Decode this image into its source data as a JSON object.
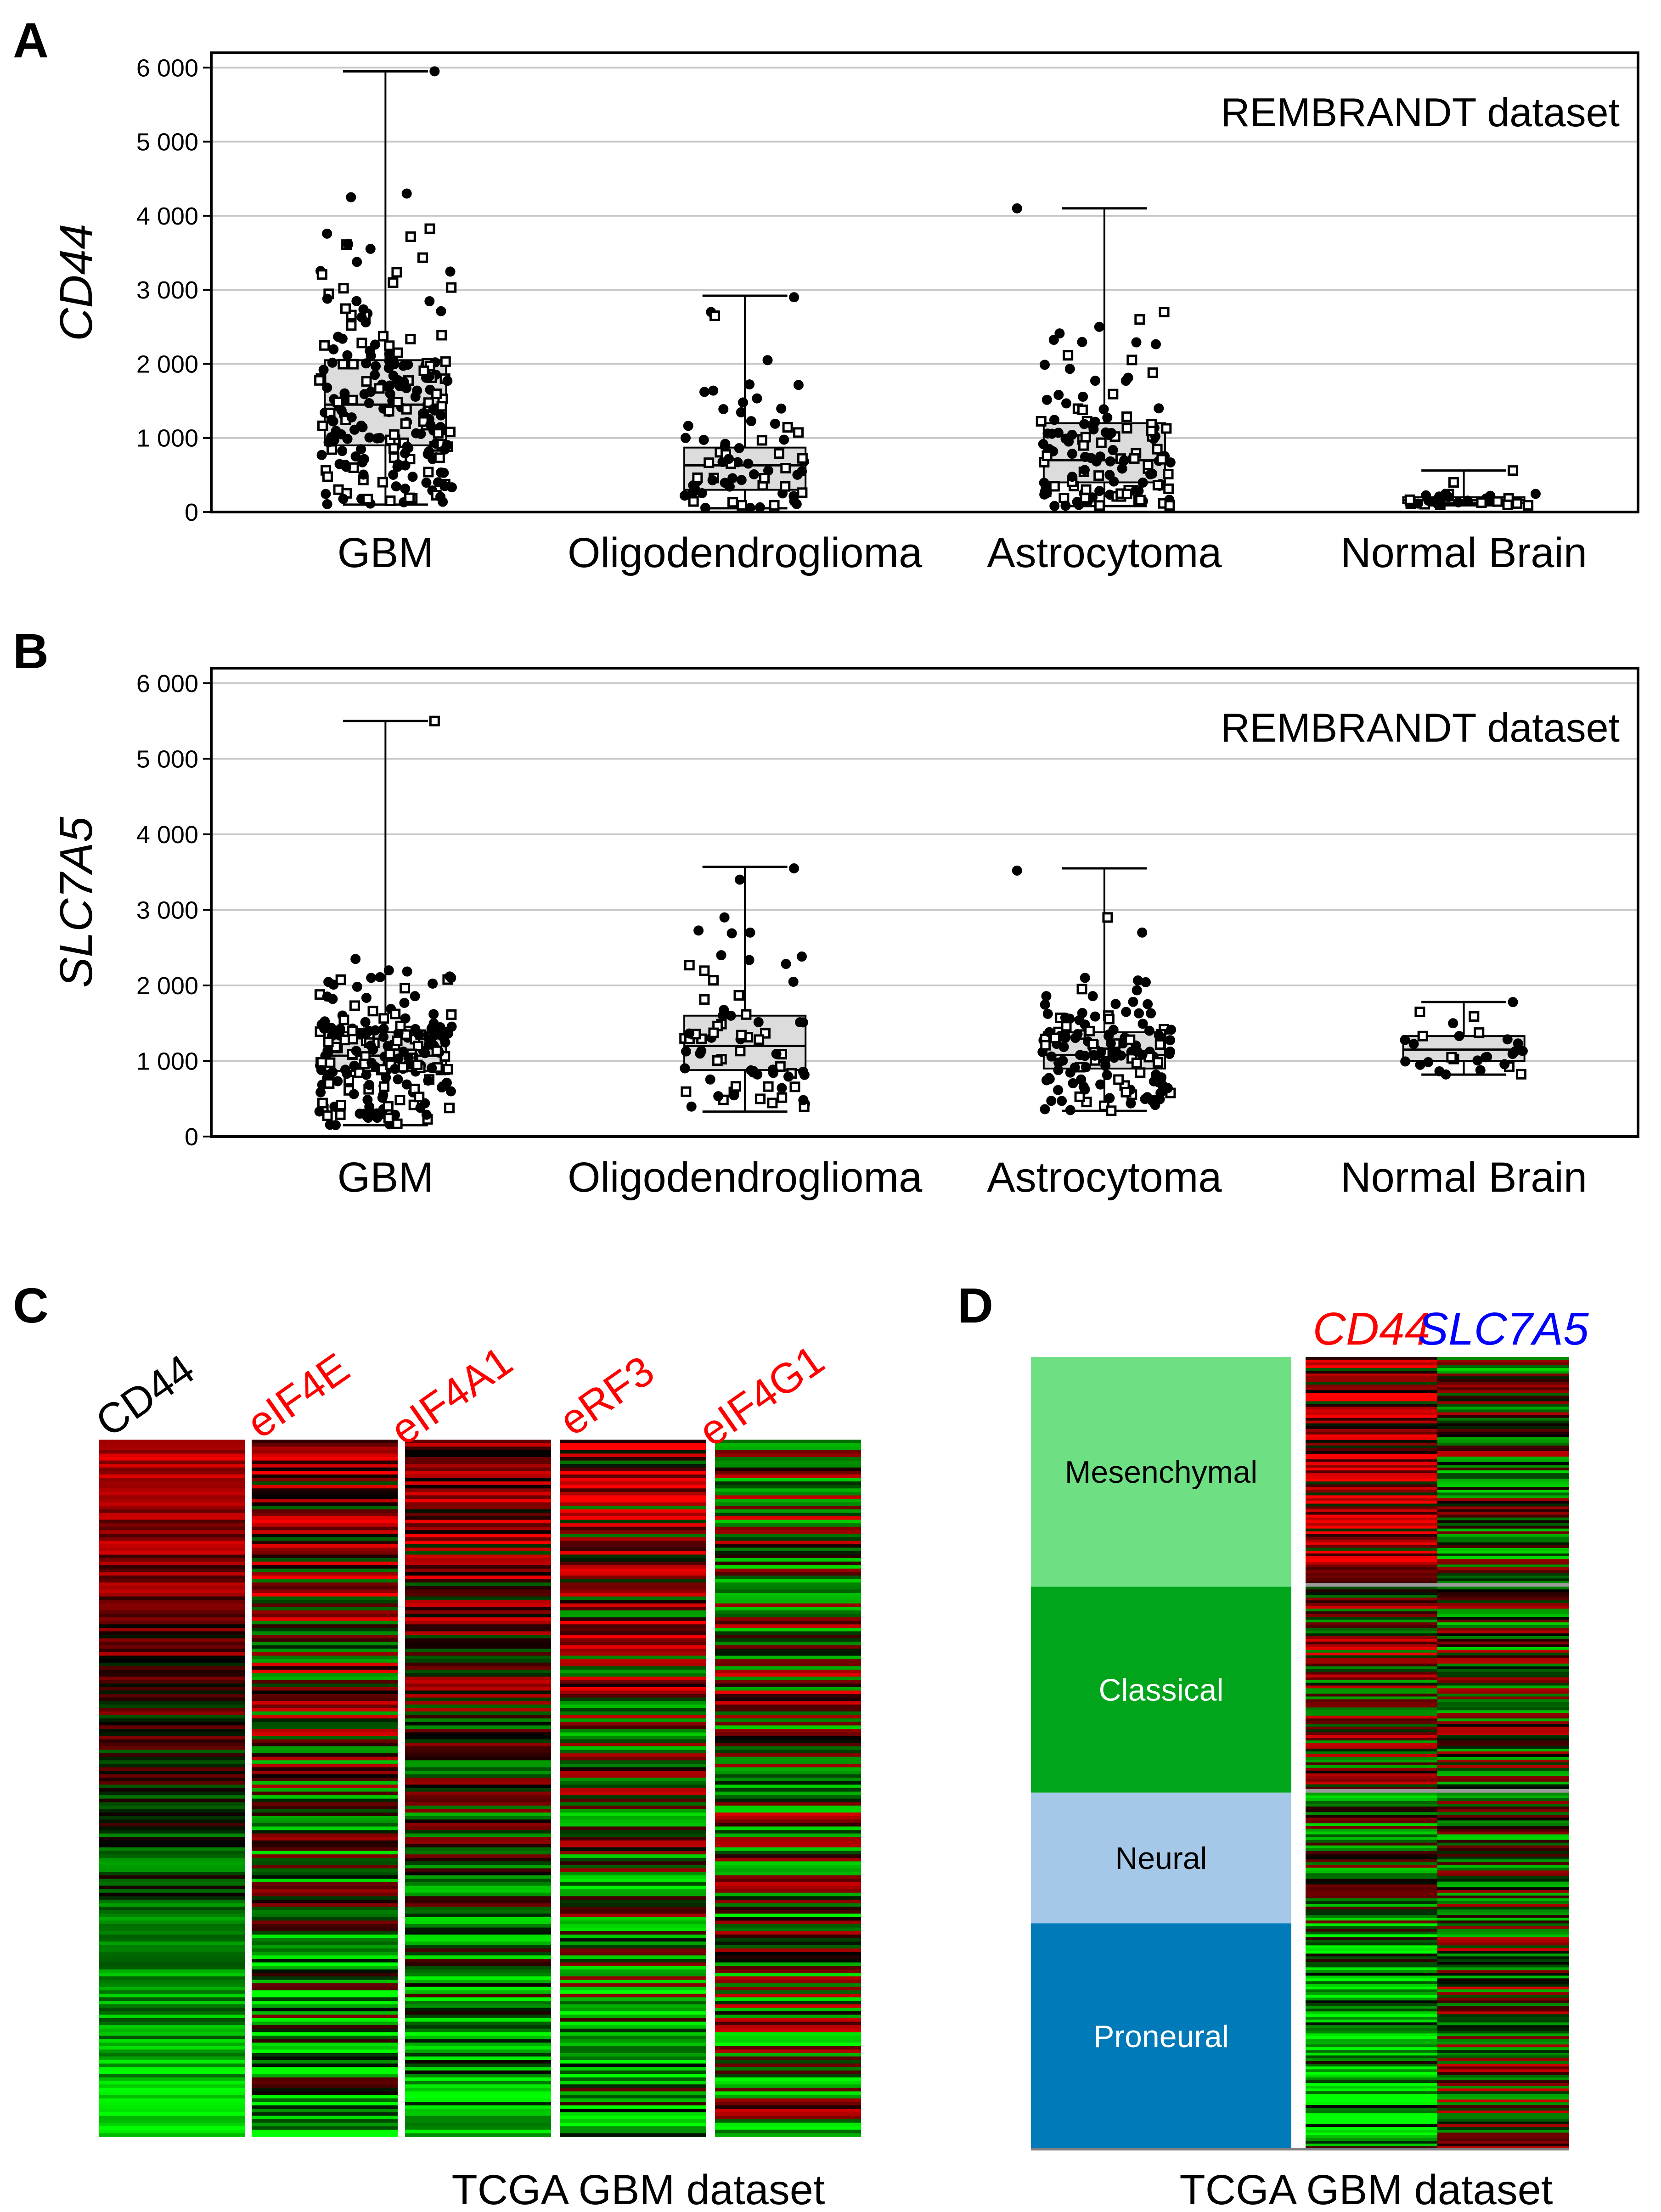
{
  "colors": {
    "up": "#ff0000",
    "down": "#00ff00",
    "mid": "#000000",
    "box_fill": "#dcdcdc",
    "grid": "#c8c8c8",
    "gap": "#9a9a9a",
    "gene_red": "#ff0000",
    "gene_blue": "#0000ff",
    "mesenchymal": "#6fdf84",
    "classical": "#00a51c",
    "neural": "#a5c8e8",
    "proneural": "#007ab8"
  },
  "chart_data": [
    {
      "panel": "A",
      "type": "box",
      "ylabel": "CD44",
      "annotation": "REMBRANDT dataset",
      "ylim": [
        0,
        6200
      ],
      "yticks": [
        0,
        1000,
        2000,
        3000,
        4000,
        5000,
        6000
      ],
      "ytick_labels": [
        "0",
        "1 000",
        "2 000",
        "3 000",
        "4 000",
        "5 000",
        "6 000"
      ],
      "grid": true,
      "categories": [
        "GBM",
        "Oligodendroglioma",
        "Astrocytoma",
        "Normal Brain"
      ],
      "boxes": [
        {
          "whisker_low": 100,
          "q1": 900,
          "median": 1450,
          "q3": 2050,
          "whisker_high": 5950,
          "n": 220,
          "spread": 0.55,
          "mode": 1500,
          "outliers": [
            5950,
            4300,
            4250
          ]
        },
        {
          "whisker_low": 50,
          "q1": 300,
          "median": 630,
          "q3": 870,
          "whisker_high": 2920,
          "n": 65,
          "spread": 0.5,
          "mode": 500,
          "outliers": [
            2900,
            2700,
            2650,
            2050
          ]
        },
        {
          "whisker_low": 80,
          "q1": 400,
          "median": 700,
          "q3": 1200,
          "whisker_high": 4100,
          "n": 130,
          "spread": 0.55,
          "mode": 700,
          "outliers": [
            4100,
            2700,
            2600,
            2500
          ]
        },
        {
          "whisker_low": 90,
          "q1": 120,
          "median": 160,
          "q3": 200,
          "whisker_high": 560,
          "n": 28,
          "spread": 0.6,
          "mode": 160,
          "outliers": [
            560,
            400
          ]
        }
      ]
    },
    {
      "panel": "B",
      "type": "box",
      "ylabel": "SLC7A5",
      "annotation": "REMBRANDT dataset",
      "ylim": [
        0,
        6200
      ],
      "yticks": [
        0,
        1000,
        2000,
        3000,
        4000,
        5000,
        6000
      ],
      "ytick_labels": [
        "0",
        "1 000",
        "2 000",
        "3 000",
        "4 000",
        "5 000",
        "6 000"
      ],
      "grid": true,
      "categories": [
        "GBM",
        "Oligodendroglioma",
        "Astrocytoma",
        "Normal Brain"
      ],
      "boxes": [
        {
          "whisker_low": 150,
          "q1": 870,
          "median": 1070,
          "q3": 1380,
          "whisker_high": 5500,
          "n": 210,
          "spread": 0.55,
          "mode": 1070,
          "outliers": [
            5500,
            2350,
            2200,
            2100
          ]
        },
        {
          "whisker_low": 330,
          "q1": 880,
          "median": 1200,
          "q3": 1600,
          "whisker_high": 3570,
          "n": 70,
          "spread": 0.5,
          "mode": 1200,
          "outliers": [
            3550,
            3400,
            2900,
            2400
          ]
        },
        {
          "whisker_low": 340,
          "q1": 900,
          "median": 1080,
          "q3": 1380,
          "whisker_high": 3550,
          "n": 140,
          "spread": 0.55,
          "mode": 1100,
          "outliers": [
            3520,
            2900,
            2700,
            2100
          ]
        },
        {
          "whisker_low": 820,
          "q1": 1000,
          "median": 1150,
          "q3": 1330,
          "whisker_high": 1780,
          "n": 25,
          "spread": 0.6,
          "mode": 1150,
          "outliers": [
            1780,
            1650,
            1500
          ]
        }
      ]
    },
    {
      "panel": "C",
      "type": "heatmap",
      "caption": "TCGA GBM dataset",
      "columns": [
        {
          "label": "CD44",
          "label_color": "#000000",
          "rows": 200,
          "trend": "red-to-green",
          "noise": 0.35,
          "seed": 11
        },
        {
          "label": "eIF4E",
          "label_color": "#ff0000",
          "rows": 200,
          "trend": "red-to-green",
          "noise": 0.75,
          "seed": 23
        },
        {
          "label": "eIF4A1",
          "label_color": "#ff0000",
          "rows": 200,
          "trend": "red-to-green",
          "noise": 0.6,
          "seed": 37
        },
        {
          "label": "eRF3",
          "label_color": "#ff0000",
          "rows": 200,
          "trend": "red-to-green",
          "noise": 0.8,
          "seed": 41
        },
        {
          "label": "eIF4G1",
          "label_color": "#ff0000",
          "rows": 200,
          "trend": "mixed",
          "noise": 0.9,
          "seed": 53
        }
      ]
    },
    {
      "panel": "D",
      "type": "heatmap",
      "caption": "TCGA GBM dataset",
      "columns": [
        {
          "label": "CD44",
          "label_color": "#ff0000",
          "seed": 61
        },
        {
          "label": "SLC7A5",
          "label_color": "#0000ff",
          "seed": 73
        }
      ],
      "subtypes": [
        {
          "label": "Mesenchymal",
          "fraction": 0.29,
          "color": "#6fdf84",
          "text_color": "#000000",
          "cd44_bias": 0.45,
          "slc_bias": -0.1
        },
        {
          "label": "Classical",
          "fraction": 0.26,
          "color": "#00a51c",
          "text_color": "#ffffff",
          "cd44_bias": 0.15,
          "slc_bias": -0.05
        },
        {
          "label": "Neural",
          "fraction": 0.165,
          "color": "#a5c8e8",
          "text_color": "#000000",
          "cd44_bias": -0.2,
          "slc_bias": -0.1
        },
        {
          "label": "Proneural",
          "fraction": 0.285,
          "color": "#007ab8",
          "text_color": "#ffffff",
          "cd44_bias": -0.55,
          "slc_bias": 0.05
        }
      ]
    }
  ]
}
